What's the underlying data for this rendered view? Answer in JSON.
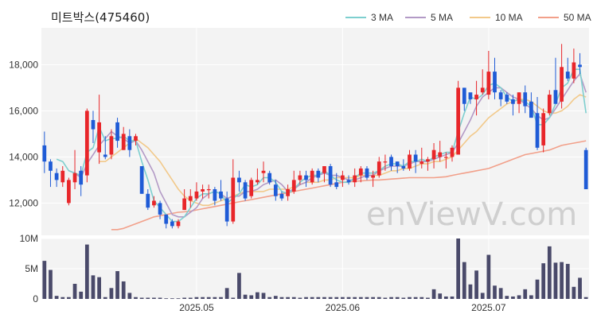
{
  "title": "미트박스(475460)",
  "watermark": "enViewV.com",
  "colors": {
    "up": "#e8262a",
    "down": "#1f5bd6",
    "volume": "#4a4a6a",
    "ma3": "#7ecfcf",
    "ma5": "#b39ac6",
    "ma10": "#f2c98a",
    "ma50": "#f2a08a"
  },
  "chart_data": {
    "type": "candlestick",
    "x_ticks": [
      {
        "label": "2025.05",
        "index": 25
      },
      {
        "label": "2025.06",
        "index": 49
      },
      {
        "label": "2025.07",
        "index": 73
      }
    ],
    "price_axis": {
      "ylim": [
        10600,
        19600
      ],
      "ticks": [
        {
          "v": 12000,
          "label": "12,000"
        },
        {
          "v": 14000,
          "label": "14,000"
        },
        {
          "v": 16000,
          "label": "16,000"
        },
        {
          "v": 18000,
          "label": "18,000"
        }
      ]
    },
    "volume_axis": {
      "ylim": [
        0,
        10
      ],
      "ticks": [
        {
          "v": 0,
          "label": "0"
        },
        {
          "v": 5,
          "label": "5M"
        },
        {
          "v": 10,
          "label": "10M"
        }
      ]
    },
    "legend": [
      {
        "key": "ma3",
        "label": "3 MA"
      },
      {
        "key": "ma5",
        "label": "5 MA"
      },
      {
        "key": "ma10",
        "label": "10 MA"
      },
      {
        "key": "ma50",
        "label": "50 MA"
      }
    ],
    "candles": [
      [
        14500,
        13800,
        15100,
        13300
      ],
      [
        13800,
        13400,
        13900,
        12700
      ],
      [
        13300,
        13000,
        13500,
        12700
      ],
      [
        12900,
        13400,
        13600,
        12700
      ],
      [
        12000,
        13000,
        13100,
        11900
      ],
      [
        12900,
        13300,
        14300,
        12600
      ],
      [
        13400,
        12800,
        13600,
        12300
      ],
      [
        13200,
        16000,
        16100,
        12900
      ],
      [
        15600,
        15200,
        16000,
        14600
      ],
      [
        14200,
        15500,
        16700,
        13700
      ],
      [
        14100,
        14000,
        14900,
        13900
      ],
      [
        14100,
        14900,
        15200,
        13900
      ],
      [
        15500,
        14700,
        15700,
        14400
      ],
      [
        14300,
        15000,
        15300,
        14300
      ],
      [
        14900,
        14300,
        15200,
        14000
      ],
      [
        14700,
        14900,
        15000,
        14500
      ],
      [
        13600,
        12400,
        13600,
        12400
      ],
      [
        12400,
        11800,
        12600,
        11700
      ],
      [
        11900,
        12100,
        12300,
        11800
      ],
      [
        12000,
        11500,
        12100,
        11300
      ],
      [
        11500,
        11100,
        11500,
        10900
      ],
      [
        11200,
        11000,
        11300,
        10900
      ],
      [
        11000,
        11200,
        11300,
        10900
      ],
      [
        11700,
        12200,
        12600,
        11700
      ],
      [
        12100,
        12300,
        12600,
        11800
      ],
      [
        12200,
        12500,
        12900,
        12100
      ],
      [
        12500,
        12600,
        12800,
        12200
      ],
      [
        12600,
        12600,
        12800,
        12200
      ],
      [
        12600,
        12100,
        12700,
        11900
      ],
      [
        12500,
        12200,
        13000,
        12100
      ],
      [
        12200,
        11200,
        12500,
        11000
      ],
      [
        11200,
        13100,
        13900,
        11100
      ],
      [
        13100,
        12900,
        13400,
        12500
      ],
      [
        12900,
        12200,
        13000,
        12100
      ],
      [
        12300,
        13000,
        13100,
        12200
      ],
      [
        12900,
        13000,
        13500,
        12800
      ],
      [
        13300,
        13400,
        13800,
        12900
      ],
      [
        13300,
        12900,
        13400,
        12800
      ],
      [
        12800,
        12300,
        13000,
        12100
      ],
      [
        12400,
        12200,
        12500,
        12100
      ],
      [
        12300,
        12600,
        12800,
        12100
      ],
      [
        12500,
        13000,
        13400,
        12400
      ],
      [
        13000,
        13200,
        13400,
        12800
      ],
      [
        13200,
        13000,
        13400,
        12700
      ],
      [
        12900,
        13400,
        13500,
        12800
      ],
      [
        13400,
        13100,
        13500,
        12900
      ],
      [
        13300,
        13600,
        13600,
        12900
      ],
      [
        13600,
        12800,
        13700,
        12700
      ],
      [
        12900,
        12700,
        13300,
        12600
      ],
      [
        13000,
        13200,
        13400,
        12700
      ],
      [
        13000,
        12900,
        13200,
        12800
      ],
      [
        12900,
        13200,
        13500,
        12700
      ],
      [
        13200,
        13500,
        13600,
        12900
      ],
      [
        13500,
        13100,
        13600,
        13000
      ],
      [
        13100,
        13200,
        13400,
        12700
      ],
      [
        13200,
        13800,
        14000,
        13100
      ],
      [
        13800,
        13800,
        14100,
        13400
      ],
      [
        14000,
        13600,
        14100,
        13400
      ],
      [
        13800,
        13600,
        13800,
        13300
      ],
      [
        13600,
        13500,
        13900,
        13400
      ],
      [
        13500,
        14100,
        14300,
        13400
      ],
      [
        14100,
        13800,
        14300,
        13300
      ],
      [
        13700,
        13800,
        14400,
        13500
      ],
      [
        13800,
        13900,
        14000,
        13400
      ],
      [
        13900,
        14300,
        14600,
        13500
      ],
      [
        14000,
        14200,
        14700,
        13800
      ],
      [
        14000,
        14000,
        14200,
        13500
      ],
      [
        14000,
        14400,
        14500,
        13800
      ],
      [
        14100,
        17000,
        17300,
        14100
      ],
      [
        17000,
        16300,
        17000,
        16000
      ],
      [
        16800,
        16500,
        16700,
        16300
      ],
      [
        16500,
        16700,
        17300,
        15800
      ],
      [
        16800,
        17000,
        17800,
        16700
      ],
      [
        16700,
        17700,
        18600,
        16500
      ],
      [
        17700,
        16800,
        18300,
        16500
      ],
      [
        16800,
        16500,
        16900,
        16200
      ],
      [
        16700,
        16400,
        16800,
        16300
      ],
      [
        16500,
        16300,
        16700,
        15800
      ],
      [
        16300,
        16800,
        16800,
        15900
      ],
      [
        16800,
        16200,
        17100,
        15900
      ],
      [
        16400,
        15700,
        16800,
        15700
      ],
      [
        15900,
        14400,
        16600,
        14300
      ],
      [
        14500,
        15900,
        16100,
        14200
      ],
      [
        15900,
        16700,
        16900,
        15800
      ],
      [
        16900,
        16300,
        18300,
        16600
      ],
      [
        16400,
        17900,
        18900,
        16100
      ],
      [
        17700,
        17400,
        18300,
        17300
      ],
      [
        17400,
        18100,
        18700,
        17200
      ],
      [
        18000,
        17900,
        18500,
        17600
      ],
      [
        14300,
        12600,
        14400,
        12600
      ]
    ],
    "ma3": [
      null,
      null,
      13900,
      13800,
      13400,
      13300,
      13200,
      14200,
      14400,
      15300,
      14700,
      14800,
      14800,
      14900,
      14700,
      14700,
      13800,
      13000,
      12100,
      11800,
      11500,
      11200,
      11200,
      11400,
      11800,
      12200,
      12400,
      12400,
      12500,
      12400,
      12000,
      12200,
      12400,
      12800,
      12700,
      12800,
      13100,
      13100,
      12900,
      12500,
      12400,
      12600,
      12900,
      13100,
      13200,
      13200,
      13400,
      13200,
      13000,
      12900,
      12900,
      13100,
      13300,
      13300,
      13300,
      13400,
      13600,
      13700,
      13700,
      13600,
      13800,
      13800,
      13900,
      13800,
      14000,
      14100,
      14200,
      14200,
      15100,
      15900,
      16600,
      16500,
      16700,
      17100,
      17200,
      17000,
      16600,
      16400,
      16500,
      16400,
      16200,
      15400,
      15400,
      15700,
      16300,
      17000,
      17200,
      17800,
      17800,
      15900
    ],
    "ma5": [
      null,
      null,
      null,
      null,
      13400,
      13300,
      13100,
      13700,
      14100,
      14500,
      14800,
      15100,
      14900,
      14800,
      14600,
      14700,
      14300,
      13800,
      13300,
      12500,
      12000,
      11500,
      11400,
      11400,
      11600,
      11800,
      12200,
      12400,
      12500,
      12400,
      12200,
      12300,
      12300,
      12500,
      12500,
      12600,
      12800,
      12900,
      13000,
      12800,
      12500,
      12600,
      12800,
      12900,
      13100,
      13200,
      13300,
      13200,
      13200,
      13100,
      13000,
      13000,
      13100,
      13200,
      13200,
      13400,
      13500,
      13600,
      13600,
      13600,
      13700,
      13800,
      13800,
      13800,
      13900,
      14000,
      14100,
      14200,
      14600,
      15100,
      15600,
      16200,
      16600,
      16800,
      17000,
      17000,
      16800,
      16600,
      16500,
      16300,
      16100,
      15800,
      15600,
      15700,
      16100,
      16500,
      16900,
      17300,
      17600,
      16800
    ],
    "ma10": [
      null,
      null,
      null,
      null,
      null,
      null,
      null,
      null,
      null,
      13800,
      13800,
      14000,
      14200,
      14400,
      14600,
      14800,
      14600,
      14400,
      14100,
      13800,
      13400,
      13000,
      12600,
      12300,
      12100,
      12000,
      11900,
      11900,
      12000,
      12100,
      12200,
      12300,
      12400,
      12500,
      12500,
      12500,
      12500,
      12600,
      12600,
      12600,
      12600,
      12700,
      12800,
      12900,
      12900,
      12900,
      13000,
      13000,
      13100,
      13100,
      13100,
      13100,
      13200,
      13200,
      13200,
      13200,
      13300,
      13400,
      13400,
      13500,
      13500,
      13600,
      13700,
      13700,
      13800,
      13800,
      13900,
      14000,
      14300,
      14600,
      14900,
      15100,
      15400,
      15700,
      15900,
      16100,
      16300,
      16400,
      16500,
      16500,
      16400,
      16200,
      16000,
      15900,
      15900,
      16000,
      16200,
      16500,
      16700,
      16600
    ],
    "ma50": [
      null,
      null,
      null,
      null,
      null,
      null,
      null,
      null,
      null,
      null,
      null,
      10850,
      10850,
      10900,
      11000,
      11100,
      11200,
      11300,
      11400,
      11450,
      11500,
      11550,
      11600,
      11620,
      11650,
      11700,
      11750,
      11800,
      11850,
      11900,
      11950,
      12000,
      12050,
      12100,
      12150,
      12200,
      12250,
      12300,
      12350,
      12400,
      12450,
      12500,
      12550,
      12600,
      12650,
      12700,
      12750,
      12800,
      12850,
      12900,
      12920,
      12940,
      12960,
      12980,
      13000,
      13000,
      13020,
      13040,
      13060,
      13080,
      13100,
      13100,
      13100,
      13100,
      13100,
      13120,
      13140,
      13200,
      13250,
      13300,
      13350,
      13400,
      13450,
      13500,
      13600,
      13700,
      13800,
      13900,
      14000,
      14100,
      14150,
      14200,
      14250,
      14300,
      14400,
      14500,
      14550,
      14600,
      14650,
      14700
    ],
    "volume": [
      6.3,
      4.8,
      0.5,
      0.3,
      0.3,
      2.5,
      1.2,
      9.0,
      3.9,
      3.6,
      0.3,
      1.8,
      4.6,
      2.9,
      1.0,
      0.3,
      0.2,
      0.2,
      0.2,
      0.2,
      0.1,
      0.1,
      0.1,
      0.2,
      0.2,
      0.3,
      0.3,
      0.3,
      0.3,
      0.3,
      1.8,
      0.2,
      4.3,
      0.7,
      0.6,
      1.1,
      1.0,
      0.3,
      0.5,
      0.3,
      0.3,
      0.3,
      0.2,
      0.3,
      0.3,
      0.3,
      0.3,
      0.3,
      0.3,
      0.3,
      0.3,
      0.3,
      0.3,
      0.3,
      0.3,
      0.3,
      0.2,
      0.3,
      0.3,
      0.2,
      0.3,
      0.3,
      0.3,
      0.2,
      1.6,
      0.9,
      0.4,
      0.4,
      10.0,
      6.1,
      2.4,
      4.7,
      1.0,
      7.3,
      2.2,
      1.8,
      0.5,
      0.4,
      0.6,
      1.6,
      0.6,
      3.2,
      5.9,
      8.7,
      6.0,
      6.1,
      5.8,
      2.0,
      3.5,
      0.3
    ]
  }
}
